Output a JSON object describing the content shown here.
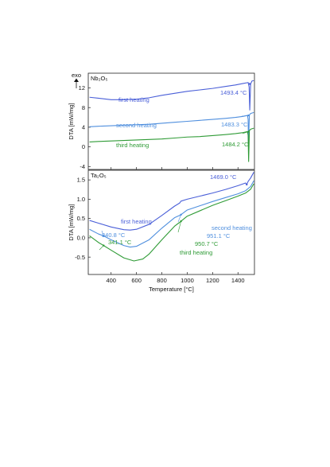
{
  "chart_data": [
    {
      "type": "line",
      "panel_label": "Nb₂O₅",
      "ylabel": "DTA [mW/mg]",
      "exo_label": "exo",
      "xlim": [
        220,
        1530
      ],
      "ylim": [
        -4.6,
        15
      ],
      "yticks": [
        -4,
        0,
        4,
        8,
        12
      ],
      "series": [
        {
          "name": "first heating",
          "color": "#4a5fd8",
          "x": [
            230,
            300,
            400,
            500,
            600,
            700,
            800,
            900,
            1000,
            1100,
            1200,
            1300,
            1380,
            1440,
            1480,
            1488,
            1493,
            1500,
            1510,
            1525
          ],
          "y": [
            10.1,
            9.9,
            9.6,
            9.6,
            9.7,
            10.0,
            10.5,
            10.9,
            11.3,
            11.6,
            11.9,
            12.3,
            12.6,
            12.9,
            13.1,
            12.2,
            7.5,
            12.8,
            13.4,
            13.5
          ]
        },
        {
          "name": "second heating",
          "color": "#4f8fde",
          "x": [
            230,
            300,
            400,
            500,
            600,
            700,
            800,
            900,
            1000,
            1100,
            1200,
            1300,
            1380,
            1440,
            1475,
            1480,
            1483,
            1490,
            1500,
            1525
          ],
          "y": [
            4.1,
            4.2,
            4.3,
            4.4,
            4.5,
            4.6,
            4.8,
            5.0,
            5.2,
            5.4,
            5.6,
            5.8,
            6.0,
            6.2,
            6.4,
            5.6,
            0.6,
            6.5,
            6.8,
            7.0
          ]
        },
        {
          "name": "third heating",
          "color": "#2f9b36",
          "x": [
            230,
            300,
            400,
            500,
            600,
            700,
            800,
            900,
            1000,
            1100,
            1200,
            1300,
            1380,
            1440,
            1475,
            1480,
            1484,
            1490,
            1500,
            1525
          ],
          "y": [
            1.0,
            1.1,
            1.2,
            1.3,
            1.4,
            1.5,
            1.6,
            1.8,
            2.0,
            2.1,
            2.3,
            2.5,
            2.7,
            2.9,
            3.1,
            2.4,
            -3.0,
            3.3,
            3.6,
            3.8
          ]
        }
      ],
      "annotations": [
        {
          "text": "1493.4 °C",
          "x": 1493,
          "y": 12.8,
          "color": "#4a5fd8"
        },
        {
          "text": "1483.3 °C",
          "x": 1483,
          "y": 6.4,
          "color": "#4f8fde"
        },
        {
          "text": "1484.2 °C",
          "x": 1484,
          "y": 3.1,
          "color": "#2f9b36"
        }
      ]
    },
    {
      "type": "line",
      "panel_label": "Ta₂O₅",
      "ylabel": "DTA [mW/mg]",
      "xlabel": "Temperature [°C]",
      "xlim": [
        220,
        1530
      ],
      "ylim": [
        -0.95,
        1.75
      ],
      "xticks": [
        400,
        600,
        800,
        1000,
        1200,
        1400
      ],
      "yticks": [
        -0.5,
        0.0,
        0.5,
        1.0,
        1.5
      ],
      "series": [
        {
          "name": "first heating",
          "color": "#4a5fd8",
          "x": [
            230,
            300,
            400,
            500,
            550,
            600,
            700,
            800,
            900,
            940,
            951,
            1000,
            1100,
            1200,
            1300,
            1400,
            1460,
            1469,
            1480,
            1500,
            1525
          ],
          "y": [
            0.45,
            0.38,
            0.28,
            0.21,
            0.2,
            0.22,
            0.35,
            0.58,
            0.82,
            0.9,
            0.95,
            1.0,
            1.08,
            1.16,
            1.25,
            1.35,
            1.42,
            1.38,
            1.46,
            1.55,
            1.7
          ]
        },
        {
          "name": "second heating",
          "color": "#4f8fde",
          "x": [
            230,
            300,
            341,
            400,
            500,
            550,
            600,
            700,
            800,
            900,
            940,
            951,
            1000,
            1100,
            1200,
            1300,
            1400,
            1460,
            1500,
            1525
          ],
          "y": [
            0.22,
            0.1,
            0.05,
            -0.05,
            -0.2,
            -0.24,
            -0.22,
            -0.05,
            0.25,
            0.52,
            0.58,
            0.6,
            0.72,
            0.83,
            0.94,
            1.04,
            1.14,
            1.22,
            1.33,
            1.48
          ]
        },
        {
          "name": "third heating",
          "color": "#2f9b36",
          "x": [
            230,
            300,
            341,
            400,
            500,
            580,
            650,
            700,
            800,
            900,
            940,
            951,
            1000,
            1100,
            1200,
            1300,
            1400,
            1460,
            1500,
            1525
          ],
          "y": [
            0.05,
            -0.12,
            -0.2,
            -0.32,
            -0.52,
            -0.6,
            -0.55,
            -0.42,
            -0.05,
            0.3,
            0.4,
            0.43,
            0.56,
            0.7,
            0.84,
            0.96,
            1.08,
            1.16,
            1.26,
            1.4
          ]
        }
      ],
      "annotations": [
        {
          "text": "1469.0 °C",
          "x": 1469,
          "y": 1.38,
          "color": "#4a5fd8"
        },
        {
          "text": "340.8 °C",
          "x": 341,
          "y": 0.05,
          "color": "#4f8fde"
        },
        {
          "text": "341.1 °C",
          "x": 341,
          "y": -0.2,
          "color": "#2f9b36"
        },
        {
          "text": "951.1 °C",
          "x": 951,
          "y": 0.6,
          "color": "#4f8fde"
        },
        {
          "text": "950.7 °C",
          "x": 951,
          "y": 0.43,
          "color": "#2f9b36"
        }
      ]
    }
  ]
}
